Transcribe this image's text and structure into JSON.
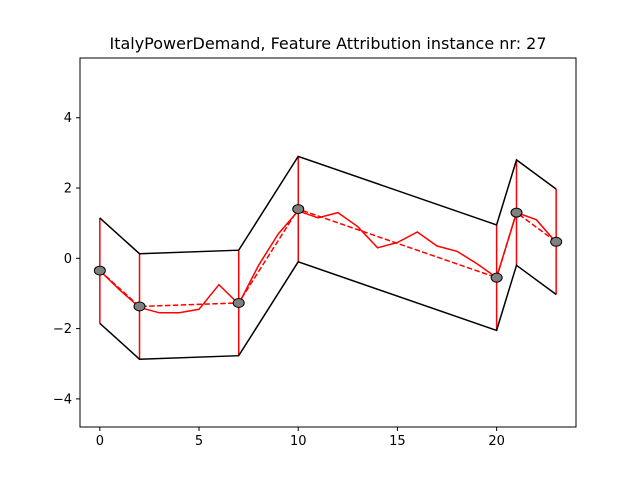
{
  "chart_data": {
    "type": "line",
    "title": "ItalyPowerDemand, Feature Attribution instance nr: 27",
    "xlabel": "",
    "ylabel": "",
    "xlim": [
      -1,
      24
    ],
    "ylim": [
      -4.8,
      5.7
    ],
    "xticks": [
      0,
      5,
      10,
      15,
      20
    ],
    "yticks": [
      -4,
      -2,
      0,
      2,
      4
    ],
    "grid": false,
    "colors": {
      "series": "#ff0000",
      "band": "#000000",
      "marker_fill": "#808080",
      "marker_edge": "#000000"
    },
    "series": [
      {
        "x": [
          0,
          1,
          2,
          3,
          4,
          5,
          6,
          7,
          8,
          9,
          10,
          11,
          12,
          13,
          14,
          15,
          16,
          17,
          18,
          19,
          20,
          21,
          22,
          23
        ],
        "y": [
          -0.35,
          -0.9,
          -1.4,
          -1.55,
          -1.55,
          -1.45,
          -0.75,
          -1.3,
          -0.2,
          0.7,
          1.35,
          1.15,
          1.3,
          0.9,
          0.3,
          0.45,
          0.75,
          0.35,
          0.2,
          -0.15,
          -0.55,
          1.3,
          1.1,
          0.45
        ]
      },
      {
        "x": [
          0,
          2,
          7,
          10,
          20,
          21,
          23
        ],
        "y": [
          -0.35,
          -1.37,
          -1.27,
          1.4,
          -0.55,
          1.3,
          0.47
        ]
      }
    ],
    "band": {
      "x": [
        0,
        2,
        7,
        10,
        20,
        21,
        23
      ],
      "upper": [
        1.15,
        0.13,
        0.23,
        2.9,
        0.95,
        2.8,
        1.97
      ],
      "lower": [
        -1.85,
        -2.87,
        -2.77,
        -0.1,
        -2.05,
        -0.2,
        -1.03
      ]
    }
  }
}
